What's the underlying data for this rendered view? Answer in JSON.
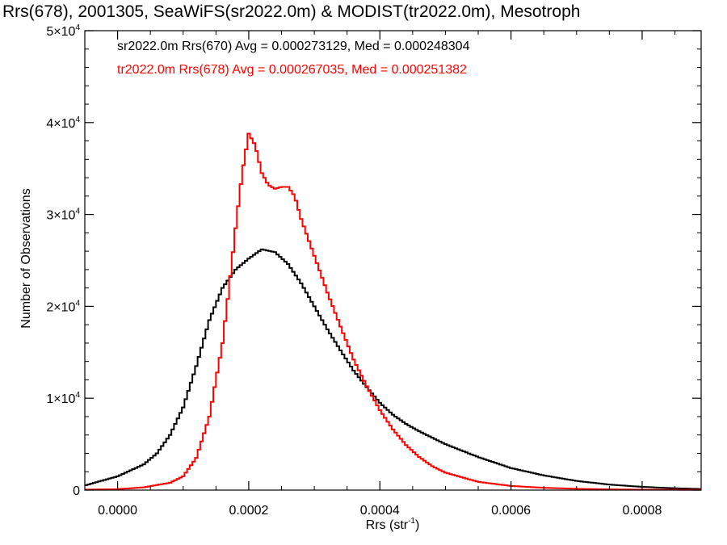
{
  "chart_data": {
    "type": "line",
    "title": "Rrs(678), 2001305, SeaWiFS(sr2022.0m) & MODIST(tr2022.0m), Mesotroph",
    "xlabel": "Rrs (str",
    "xlabel_sup": "-1",
    "xlabel_end": ")",
    "ylabel": "Number of Observations",
    "xlim": [
      -5e-05,
      0.00089
    ],
    "ylim": [
      0,
      50000
    ],
    "x_ticks": [
      0.0,
      0.0002,
      0.0004,
      0.0006,
      0.0008
    ],
    "x_tick_labels": [
      "0.0000",
      "0.0002",
      "0.0004",
      "0.0006",
      "0.0008"
    ],
    "y_ticks": [
      0,
      10000,
      20000,
      30000,
      40000,
      50000
    ],
    "y_tick_labels": [
      {
        "mant": "0",
        "exp": ""
      },
      {
        "mant": "1×10",
        "exp": "4"
      },
      {
        "mant": "2×10",
        "exp": "4"
      },
      {
        "mant": "3×10",
        "exp": "4"
      },
      {
        "mant": "4×10",
        "exp": "4"
      },
      {
        "mant": "5×10",
        "exp": "4"
      }
    ],
    "grid": false,
    "legend_position": "top-left",
    "series": [
      {
        "label": "sr2022.0m Rrs(670) Avg = 0.000273129, Med = 0.000248304",
        "color": "#000000",
        "points": [
          [
            -5e-05,
            500
          ],
          [
            0.0,
            1500
          ],
          [
            4e-05,
            2800
          ],
          [
            6e-05,
            4000
          ],
          [
            8e-05,
            6000
          ],
          [
            0.0001,
            9000
          ],
          [
            0.00012,
            13500
          ],
          [
            0.00014,
            18500
          ],
          [
            0.00016,
            22000
          ],
          [
            0.00018,
            24000
          ],
          [
            0.0002,
            25200
          ],
          [
            0.00022,
            26200
          ],
          [
            0.00024,
            25900
          ],
          [
            0.00026,
            24600
          ],
          [
            0.00028,
            22500
          ],
          [
            0.0003,
            20000
          ],
          [
            0.00032,
            17500
          ],
          [
            0.00034,
            15200
          ],
          [
            0.00036,
            13000
          ],
          [
            0.00038,
            11200
          ],
          [
            0.0004,
            9500
          ],
          [
            0.00042,
            8200
          ],
          [
            0.00044,
            7200
          ],
          [
            0.00046,
            6400
          ],
          [
            0.00048,
            5700
          ],
          [
            0.0005,
            5000
          ],
          [
            0.00055,
            3600
          ],
          [
            0.0006,
            2400
          ],
          [
            0.00065,
            1600
          ],
          [
            0.0007,
            1000
          ],
          [
            0.00075,
            600
          ],
          [
            0.0008,
            350
          ],
          [
            0.00085,
            200
          ],
          [
            0.00089,
            120
          ]
        ]
      },
      {
        "label": "tr2022.0m Rrs(678) Avg = 0.000267035, Med = 0.000251382",
        "color": "#ff0000",
        "points": [
          [
            -5e-05,
            50
          ],
          [
            0.0,
            100
          ],
          [
            4e-05,
            300
          ],
          [
            8e-05,
            800
          ],
          [
            0.0001,
            1500
          ],
          [
            0.00012,
            3500
          ],
          [
            0.00014,
            8000
          ],
          [
            0.00016,
            16000
          ],
          [
            0.00017,
            22000
          ],
          [
            0.00018,
            28500
          ],
          [
            0.00019,
            34500
          ],
          [
            0.0002,
            38800
          ],
          [
            0.00021,
            37500
          ],
          [
            0.00022,
            34500
          ],
          [
            0.00023,
            33200
          ],
          [
            0.00024,
            32800
          ],
          [
            0.00025,
            33000
          ],
          [
            0.00026,
            33000
          ],
          [
            0.00027,
            32000
          ],
          [
            0.00028,
            29500
          ],
          [
            0.0003,
            25500
          ],
          [
            0.00032,
            21500
          ],
          [
            0.00034,
            17800
          ],
          [
            0.00036,
            14200
          ],
          [
            0.00038,
            11300
          ],
          [
            0.0004,
            8700
          ],
          [
            0.00042,
            6600
          ],
          [
            0.00044,
            4900
          ],
          [
            0.00046,
            3600
          ],
          [
            0.00048,
            2600
          ],
          [
            0.0005,
            1900
          ],
          [
            0.00055,
            900
          ],
          [
            0.0006,
            450
          ],
          [
            0.00065,
            250
          ],
          [
            0.0007,
            140
          ],
          [
            0.00075,
            80
          ],
          [
            0.0008,
            50
          ],
          [
            0.00089,
            30
          ]
        ]
      }
    ]
  }
}
